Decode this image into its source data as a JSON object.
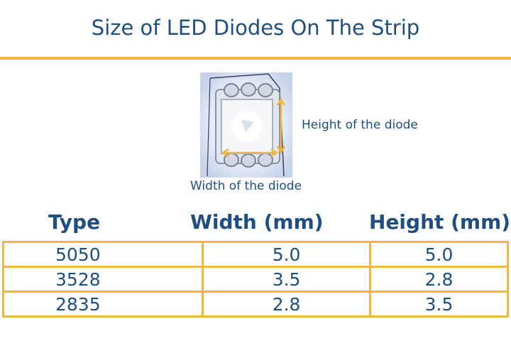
{
  "title": "Size of LED Diodes On The Strip",
  "diagram": {
    "height_label": "Height of the diode",
    "width_label": "Width of the diode",
    "image_icon": "led-diode-photo",
    "arrow_color": "#f4b63b"
  },
  "table": {
    "headers": [
      "Type",
      "Width (mm)",
      "Height (mm)"
    ],
    "rows": [
      [
        "5050",
        "5.0",
        "5.0"
      ],
      [
        "3528",
        "3.5",
        "2.8"
      ],
      [
        "2835",
        "2.8",
        "3.5"
      ]
    ]
  },
  "colors": {
    "text": "#1f4e82",
    "accent": "#f4b63b"
  }
}
